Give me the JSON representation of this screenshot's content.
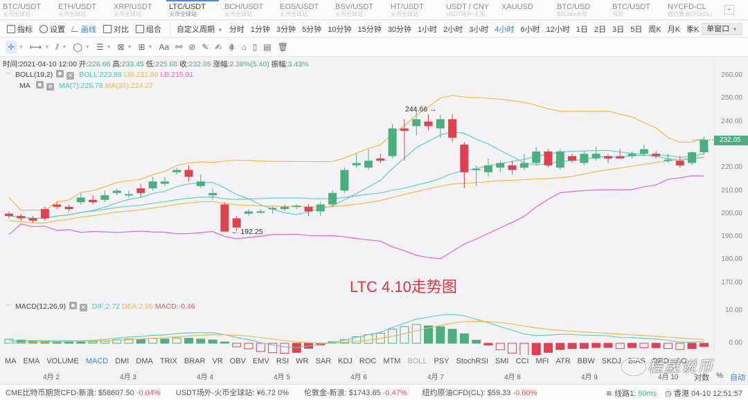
{
  "tabs": [
    {
      "symbol": "BTC/USDT",
      "source": "火币全球站",
      "active": false
    },
    {
      "symbol": "ETH/USDT",
      "source": "火币全球站",
      "active": false
    },
    {
      "symbol": "XRP/USDT",
      "source": "火币全球站",
      "active": false
    },
    {
      "symbol": "LTC/USDT",
      "source": "火币全球站",
      "active": true
    },
    {
      "symbol": "BCH/USDT",
      "source": "火币全球站",
      "active": false
    },
    {
      "symbol": "EOS/USDT",
      "source": "火币全球站",
      "active": false
    },
    {
      "symbol": "BSV/USDT",
      "source": "火币全球站",
      "active": false
    },
    {
      "symbol": "HT/USDT",
      "source": "火币全球站",
      "active": false
    },
    {
      "symbol": "USDT / CNY",
      "source": "USDT场外-火币...",
      "active": false
    },
    {
      "symbol": "XAUUSD",
      "source": "-",
      "active": false
    },
    {
      "symbol": "BTC/USD",
      "source": "BitCoke永续",
      "active": false
    },
    {
      "symbol": "BTC/USDT",
      "source": "币安",
      "active": false
    },
    {
      "symbol": "NYCFD-CL",
      "source": "纽约原油CFD(CL)",
      "active": false
    }
  ],
  "tab_add_label": "+",
  "toolbar": {
    "tools": [
      {
        "label": "指标",
        "icon": "indicator-icon"
      },
      {
        "label": "设置",
        "icon": "settings-icon"
      },
      {
        "label": "画线",
        "icon": "draw-line-icon",
        "active": true
      },
      {
        "label": "对比",
        "icon": "compare-icon"
      },
      {
        "label": "组合",
        "icon": "combine-icon"
      }
    ],
    "custom_period": "自定义周期",
    "periods": [
      "分时",
      "1分钟",
      "3分钟",
      "5分钟",
      "10分钟",
      "15分钟",
      "30分钟",
      "1小时",
      "2小时",
      "3小时",
      "4小时",
      "6小时",
      "12小时",
      "1日",
      "2日",
      "3日",
      "5日",
      "周K",
      "月K",
      "季K"
    ],
    "active_period": "4小时",
    "refresh": "1s",
    "window_mode": "单窗口"
  },
  "drawing_tools": [
    "crosshair",
    "horizontal-segment",
    "parallel-lines",
    "ellipse",
    "fibonacci",
    "pattern",
    "measure",
    "text",
    "magnet",
    "hide-drawings",
    "ruler",
    "brush",
    "lock-group",
    "lock",
    "bookmark",
    "template",
    "delete"
  ],
  "drawing_text_label": "Aa",
  "ohlc": {
    "time_label": "时间:",
    "time": "2021-04-10 12:00",
    "open_label": "开:",
    "open": "226.66",
    "high_label": "高:",
    "high": "233.45",
    "low_label": "低:",
    "low": "225.68",
    "close_label": "收:",
    "close": "232.05",
    "change_label": "涨幅:",
    "change": "2.38%(5.40)",
    "amplitude_label": "振幅:",
    "amplitude": "3.43%"
  },
  "boll": {
    "name": "BOLL(19,2)",
    "mid": "BOLL:223.88",
    "ub": "UB:231.86",
    "lb": "LB:215.91"
  },
  "ma": {
    "name": "MA",
    "ma7": "MA(7):225.78",
    "ma30": "MA(30):224.27"
  },
  "macd": {
    "name": "MACD(12,26,9)",
    "dif": "DIF:2.72",
    "dea": "DEA:2.95",
    "macd": "MACD:-0.46"
  },
  "annotations": {
    "high": "244.66 →",
    "low": "← 192.25",
    "title": "LTC 4.10走势图"
  },
  "price_axis": [
    "260.00",
    "250.00",
    "240.00",
    "220.00",
    "210.00",
    "200.00",
    "190.00",
    "180.00",
    "170.00"
  ],
  "last_price": "232.05",
  "macd_axis": [
    "10.00",
    "0.00"
  ],
  "indicators": [
    "MA",
    "EMA",
    "VOLUME",
    "MACD",
    "DMI",
    "DMA",
    "TRIX",
    "BRAR",
    "VR",
    "OBV",
    "EMV",
    "RSI",
    "WR",
    "SAR",
    "KDJ",
    "ROC",
    "MTM",
    "BOLL",
    "PSY",
    "StochRSI",
    "SMI",
    "CCI",
    "MFI",
    "ATR",
    "BBW",
    "SKDJ",
    "BIAS",
    "DPO",
    "AO"
  ],
  "active_indicator": "MACD",
  "dates": [
    "4月 2",
    "4月 3",
    "4月 4",
    "4月 5",
    "4月 6",
    "4月 7",
    "4月 8",
    "4月 9",
    "4月 10"
  ],
  "scale_options": {
    "log": "对数",
    "percent": "%",
    "auto": "自动"
  },
  "status": {
    "tickers": [
      {
        "name": "CME比特币期货CFD-新浪:",
        "price": "$58607.50",
        "change": "-0.04%",
        "neg": true
      },
      {
        "name": "USDT场外-火币全球站:",
        "price": "¥6.72",
        "change": "0%",
        "neg": false
      },
      {
        "name": "伦敦金-新浪:",
        "price": "$1743.65",
        "change": "-0.47%",
        "neg": true
      },
      {
        "name": "纽约原油CFD(CL):",
        "price": "$59.33",
        "change": "-0.60%",
        "neg": true
      }
    ],
    "line_label": "线路1:",
    "latency": "50ms",
    "clock": "香港 04-10 12:51:57"
  },
  "watermark": "程晟说币",
  "colors": {
    "up": "#4caf84",
    "down": "#e0414f",
    "boll_mid": "#5fcfc0",
    "boll_ub": "#f5b942",
    "boll_lb": "#e066c8",
    "ma7": "#5fcfc0",
    "ma30": "#f5b942",
    "accent": "#3b7fe0"
  },
  "chart_data": {
    "type": "candlestick",
    "title": "LTC/USDT 4小时",
    "ylim": [
      165,
      265
    ],
    "candles": [
      [
        200,
        199,
        201,
        198
      ],
      [
        199,
        198,
        200,
        197
      ],
      [
        198,
        197,
        199,
        196
      ],
      [
        202,
        198,
        203,
        197
      ],
      [
        204,
        203,
        205,
        202
      ],
      [
        203,
        202,
        204,
        201
      ],
      [
        205,
        207,
        209,
        204
      ],
      [
        206,
        205,
        208,
        204
      ],
      [
        206,
        208,
        210,
        205
      ],
      [
        209,
        210,
        211,
        208
      ],
      [
        208,
        208.5,
        210,
        207
      ],
      [
        211,
        209,
        213,
        207
      ],
      [
        211,
        214,
        216,
        210
      ],
      [
        213,
        214,
        216,
        212
      ],
      [
        218,
        219,
        220,
        217
      ],
      [
        219,
        216,
        221,
        214
      ],
      [
        212,
        214,
        217,
        211
      ],
      [
        208,
        209,
        211,
        206
      ],
      [
        204,
        192.25,
        205,
        192.25
      ],
      [
        198,
        194,
        199,
        192.25
      ],
      [
        200,
        201,
        202,
        199
      ],
      [
        201,
        201,
        202,
        200
      ],
      [
        202,
        202.5,
        203,
        200
      ],
      [
        202,
        203,
        204,
        201
      ],
      [
        203,
        203.5,
        204,
        202
      ],
      [
        203,
        201,
        204,
        199
      ],
      [
        201,
        204,
        205,
        199
      ],
      [
        204,
        209,
        210,
        203
      ],
      [
        210,
        219,
        220,
        209
      ],
      [
        221,
        222,
        226,
        220
      ],
      [
        220,
        223,
        228,
        219
      ],
      [
        224,
        223,
        226,
        222
      ],
      [
        225,
        237,
        239,
        224
      ],
      [
        237,
        236,
        241,
        223
      ],
      [
        238,
        241,
        244.66,
        234
      ],
      [
        240,
        238,
        243,
        236
      ],
      [
        237,
        241,
        243,
        233
      ],
      [
        241,
        233,
        243,
        231
      ],
      [
        230,
        218,
        231,
        211
      ],
      [
        219,
        219.5,
        221,
        212
      ],
      [
        218,
        221,
        224,
        216
      ],
      [
        220,
        222,
        223,
        218
      ],
      [
        221,
        219,
        223,
        217
      ],
      [
        220,
        222,
        226,
        219
      ],
      [
        222,
        227,
        229,
        221
      ],
      [
        227,
        221,
        228,
        220
      ],
      [
        220,
        227,
        228,
        219
      ],
      [
        225,
        223,
        226,
        222
      ],
      [
        222,
        226,
        227,
        221
      ],
      [
        224,
        226,
        229,
        223
      ],
      [
        225,
        224,
        226,
        222
      ],
      [
        225,
        224,
        228,
        224
      ],
      [
        225,
        226,
        227,
        224
      ],
      [
        226,
        228,
        230,
        225
      ],
      [
        226,
        225,
        227,
        224
      ],
      [
        223,
        223.5,
        226,
        222
      ],
      [
        223,
        221,
        225,
        220
      ],
      [
        222,
        226.66,
        227,
        221
      ],
      [
        226.66,
        232.05,
        233.45,
        225.68
      ]
    ]
  }
}
